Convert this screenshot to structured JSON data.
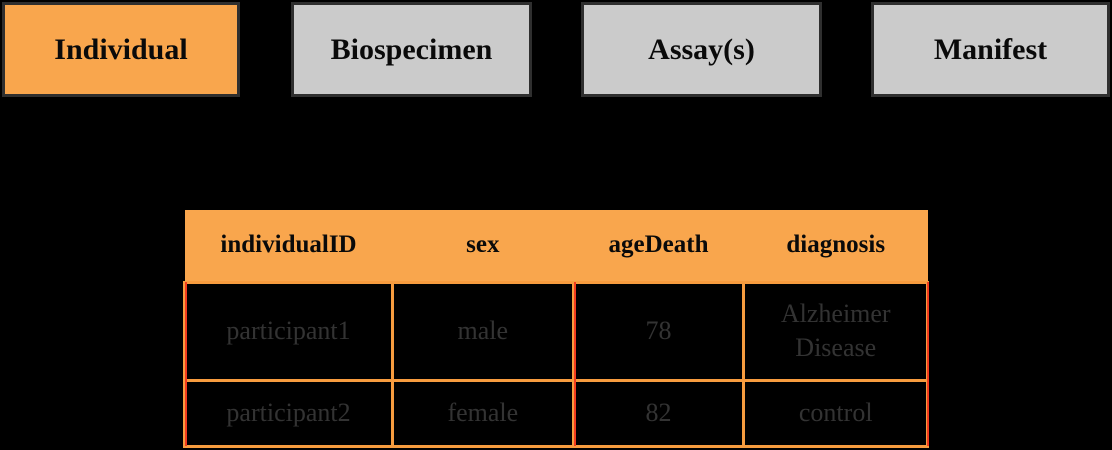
{
  "tabs": [
    {
      "label": "Individual",
      "active": true
    },
    {
      "label": "Biospecimen",
      "active": false
    },
    {
      "label": "Assay(s)",
      "active": false
    },
    {
      "label": "Manifest",
      "active": false
    }
  ],
  "table": {
    "columns": [
      "individualID",
      "sex",
      "ageDeath",
      "diagnosis"
    ],
    "rows": [
      [
        "participant1",
        "male",
        "78",
        "Alzheimer Disease"
      ],
      [
        "participant2",
        "female",
        "82",
        "control"
      ]
    ]
  },
  "colors": {
    "background": "#000000",
    "active_tab_orange": "#f9a64d",
    "inactive_tab_gray": "#cbcbcb",
    "tab_border": "#2f2f2f",
    "table_header_orange": "#f9a64d",
    "table_grid_orange": "#f79c3f",
    "red_accent_line": "#f23b1e",
    "body_text_gray": "#333333"
  }
}
